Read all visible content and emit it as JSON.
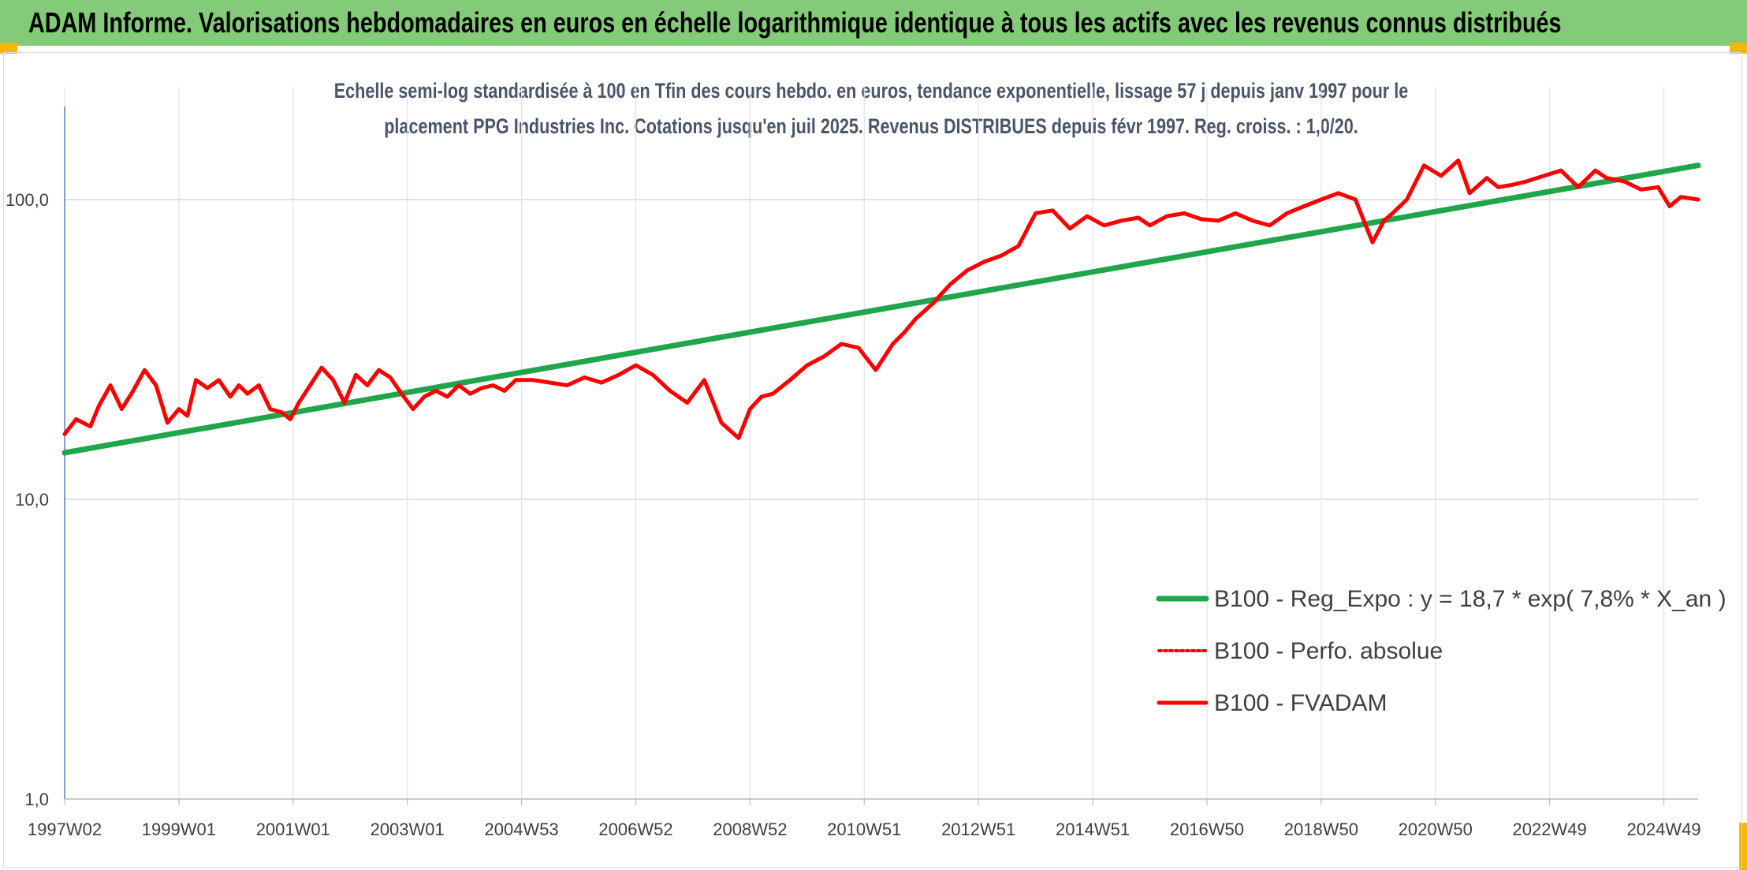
{
  "header": {
    "title": "ADAM Informe. Valorisations hebdomadaires en euros en échelle logarithmique identique à tous les actifs avec les revenus connus distribués"
  },
  "chart_data": {
    "type": "line",
    "title_line1": "Echelle semi-log standardisée à 100 en Tfin des cours hebdo. en euros, tendance exponentielle, lissage 57 j depuis janv 1997 pour le",
    "title_line2": "placement PPG Industries Inc. Cotations jusqu'en juil 2025. Revenus DISTRIBUES depuis févr 1997. Reg. croiss. : 1,0/20.",
    "y_scale": "log",
    "ylim": [
      1,
      200
    ],
    "xlim": [
      1997.0,
      2025.6
    ],
    "y_ticks": [
      {
        "value": 1,
        "label": "1,0"
      },
      {
        "value": 10,
        "label": "10,0"
      },
      {
        "value": 100,
        "label": "100,0"
      }
    ],
    "x_ticks": [
      {
        "value": 1997.0,
        "label": "1997W02"
      },
      {
        "value": 1999.0,
        "label": "1999W01"
      },
      {
        "value": 2001.0,
        "label": "2001W01"
      },
      {
        "value": 2003.0,
        "label": "2003W01"
      },
      {
        "value": 2005.0,
        "label": "2004W53"
      },
      {
        "value": 2007.0,
        "label": "2006W52"
      },
      {
        "value": 2009.0,
        "label": "2008W52"
      },
      {
        "value": 2011.0,
        "label": "2010W51"
      },
      {
        "value": 2013.0,
        "label": "2012W51"
      },
      {
        "value": 2015.0,
        "label": "2014W51"
      },
      {
        "value": 2017.0,
        "label": "2016W50"
      },
      {
        "value": 2019.0,
        "label": "2018W50"
      },
      {
        "value": 2021.0,
        "label": "2020W50"
      },
      {
        "value": 2023.0,
        "label": "2022W49"
      },
      {
        "value": 2025.0,
        "label": "2024W49"
      }
    ],
    "grid": "horizontal-and-vertical",
    "legend_position": "bottom-right",
    "series": [
      {
        "name": "B100 - Reg_Expo : y = 18,7 * exp( 7,8% *  X_an )",
        "color": "#1fa64a",
        "style": "solid-thick",
        "x": [
          1997.0,
          2025.6
        ],
        "y": [
          14.3,
          130.0
        ]
      },
      {
        "name": "B100 - Perfo. absolue",
        "color": "#ff0000",
        "style": "dotted",
        "x": [],
        "y": []
      },
      {
        "name": "B100 - FVADAM",
        "color": "#ff0000",
        "style": "solid",
        "x": [
          1997.0,
          1997.2,
          1997.45,
          1997.6,
          1997.8,
          1998.0,
          1998.2,
          1998.4,
          1998.6,
          1998.8,
          1999.0,
          1999.15,
          1999.3,
          1999.5,
          1999.7,
          1999.9,
          2000.05,
          2000.2,
          2000.4,
          2000.6,
          2000.8,
          2000.95,
          2001.1,
          2001.3,
          2001.5,
          2001.7,
          2001.9,
          2002.1,
          2002.3,
          2002.5,
          2002.7,
          2002.9,
          2003.1,
          2003.3,
          2003.5,
          2003.7,
          2003.9,
          2004.1,
          2004.3,
          2004.5,
          2004.7,
          2004.9,
          2005.2,
          2005.5,
          2005.8,
          2006.1,
          2006.4,
          2006.7,
          2007.0,
          2007.3,
          2007.6,
          2007.9,
          2008.2,
          2008.5,
          2008.8,
          2009.0,
          2009.2,
          2009.4,
          2009.7,
          2010.0,
          2010.3,
          2010.6,
          2010.9,
          2011.2,
          2011.5,
          2011.7,
          2011.9,
          2012.2,
          2012.5,
          2012.8,
          2013.1,
          2013.4,
          2013.7,
          2014.0,
          2014.3,
          2014.6,
          2014.9,
          2015.2,
          2015.5,
          2015.8,
          2016.0,
          2016.3,
          2016.6,
          2016.9,
          2017.2,
          2017.5,
          2017.8,
          2018.1,
          2018.4,
          2018.7,
          2019.0,
          2019.3,
          2019.6,
          2019.9,
          2020.1,
          2020.25,
          2020.5,
          2020.8,
          2021.1,
          2021.4,
          2021.6,
          2021.9,
          2022.1,
          2022.35,
          2022.6,
          2022.9,
          2023.2,
          2023.5,
          2023.8,
          2024.0,
          2024.3,
          2024.6,
          2024.9,
          2025.1,
          2025.3,
          2025.6
        ],
        "y": [
          16.5,
          18.5,
          17.5,
          20.5,
          24.0,
          20.0,
          23.0,
          27.0,
          24.0,
          18.0,
          20.0,
          19.0,
          25.0,
          23.5,
          25.0,
          22.0,
          24.0,
          22.5,
          24.0,
          20.0,
          19.5,
          18.5,
          21.0,
          24.0,
          27.5,
          25.0,
          21.0,
          26.0,
          24.0,
          27.0,
          25.5,
          22.5,
          20.0,
          22.0,
          23.0,
          22.0,
          24.0,
          22.5,
          23.5,
          24.0,
          23.0,
          25.0,
          25.0,
          24.5,
          24.0,
          25.5,
          24.5,
          26.0,
          28.0,
          26.0,
          23.0,
          21.0,
          25.0,
          18.0,
          16.0,
          20.0,
          22.0,
          22.5,
          25.0,
          28.0,
          30.0,
          33.0,
          32.0,
          27.0,
          33.0,
          36.0,
          40.0,
          45.0,
          52.0,
          58.0,
          62.0,
          65.0,
          70.0,
          90.0,
          92.0,
          80.0,
          88.0,
          82.0,
          85.0,
          87.0,
          82.0,
          88.0,
          90.0,
          86.0,
          85.0,
          90.0,
          85.0,
          82.0,
          90.0,
          95.0,
          100.0,
          105.0,
          100.0,
          72.0,
          85.0,
          90.0,
          100.0,
          130.0,
          120.0,
          135.0,
          105.0,
          118.0,
          110.0,
          112.0,
          115.0,
          120.0,
          125.0,
          110.0,
          125.0,
          118.0,
          115.0,
          108.0,
          110.0,
          95.0,
          102.0,
          100.0
        ]
      }
    ]
  }
}
